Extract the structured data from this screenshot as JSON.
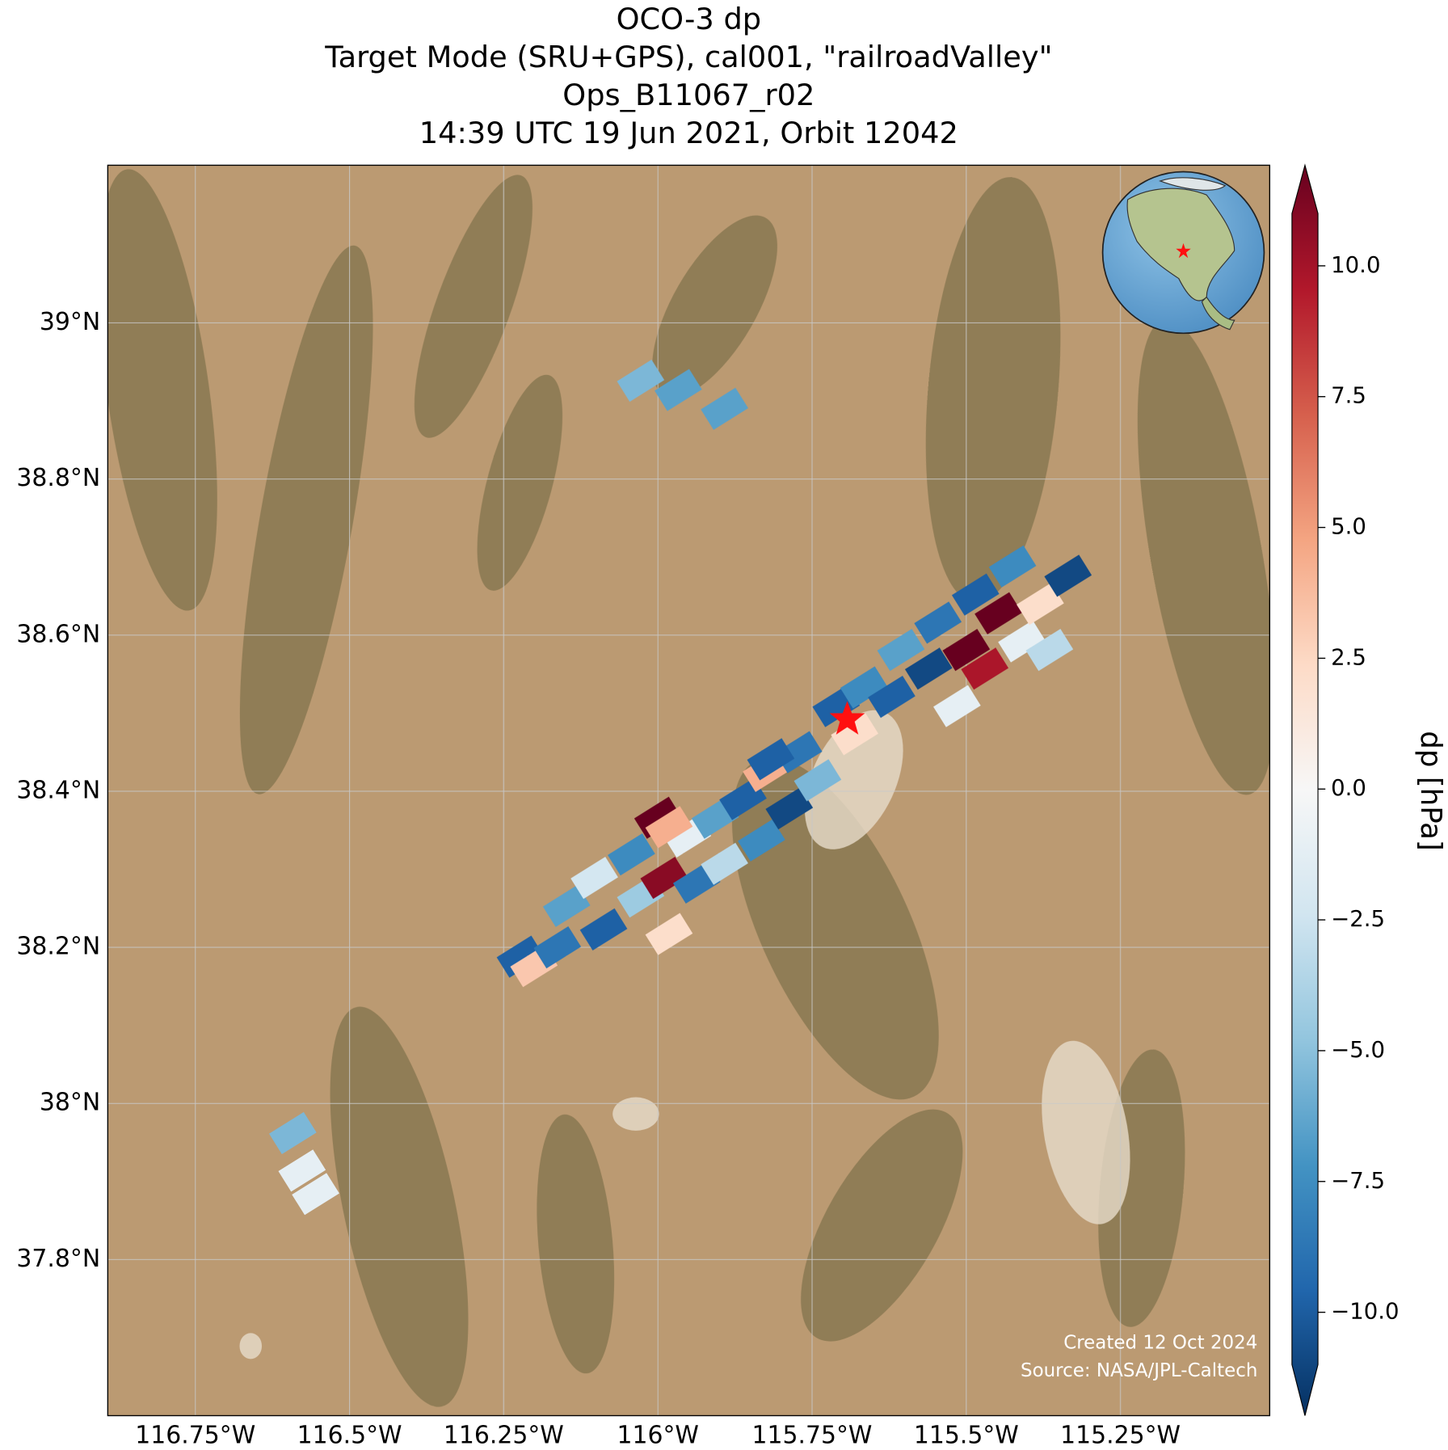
{
  "chart_data": {
    "type": "map",
    "title_lines": [
      "OCO-3 dp",
      "Target Mode (SRU+GPS), cal001, \"railroadValley\"",
      "Ops_B11067_r02",
      "14:39 UTC 19 Jun 2021, Orbit 12042"
    ],
    "xlim": [
      -116.892,
      -115.008
    ],
    "ylim": [
      37.6,
      39.202
    ],
    "xticks": [
      {
        "value": -116.75,
        "label": "116.75°W"
      },
      {
        "value": -116.5,
        "label": "116.5°W"
      },
      {
        "value": -116.25,
        "label": "116.25°W"
      },
      {
        "value": -116,
        "label": "116°W"
      },
      {
        "value": -115.75,
        "label": "115.75°W"
      },
      {
        "value": -115.5,
        "label": "115.5°W"
      },
      {
        "value": -115.25,
        "label": "115.25°W"
      }
    ],
    "yticks": [
      {
        "value": 39,
        "label": "39°N"
      },
      {
        "value": 38.8,
        "label": "38.8°N"
      },
      {
        "value": 38.6,
        "label": "38.6°N"
      },
      {
        "value": 38.4,
        "label": "38.4°N"
      },
      {
        "value": 38.2,
        "label": "38.2°N"
      },
      {
        "value": 38,
        "label": "38°N"
      },
      {
        "value": 37.8,
        "label": "37.8°N"
      }
    ],
    "grid": true,
    "colormap": "RdBu_r",
    "clim": [
      -11,
      11
    ],
    "colorbar_label": "dp [hPa]",
    "colorbar_ticks": [
      {
        "value": 10,
        "label": "10.0"
      },
      {
        "value": 7.5,
        "label": "7.5"
      },
      {
        "value": 5,
        "label": "5.0"
      },
      {
        "value": 2.5,
        "label": "2.5"
      },
      {
        "value": 0,
        "label": "0.0"
      },
      {
        "value": -2.5,
        "label": "−2.5"
      },
      {
        "value": -5,
        "label": "−5.0"
      },
      {
        "value": -7.5,
        "label": "−7.5"
      },
      {
        "value": -10,
        "label": "−10.0"
      }
    ],
    "target_location": {
      "lon": -115.693,
      "lat": 38.494
    },
    "soundings": {
      "lon": [
        -116.223,
        -116.201,
        -116.163,
        -116.148,
        -116.103,
        -116.088,
        -116.043,
        -116.028,
        -115.99,
        -115.982,
        -115.952,
        -115.937,
        -115.907,
        -115.892,
        -115.862,
        -115.832,
        -115.824,
        -115.787,
        -115.772,
        -115.741,
        -115.711,
        -115.681,
        -115.666,
        -115.621,
        -115.606,
        -115.561,
        -115.546,
        -115.5,
        -115.485,
        -115.47,
        -115.448,
        -115.425,
        -115.41,
        -115.38,
        -115.365,
        -115.335,
        -116.0,
        -115.982,
        -115.817,
        -115.515,
        -116.028,
        -115.967,
        -115.892,
        -116.592,
        -116.577,
        -116.555
      ],
      "lat": [
        38.188,
        38.176,
        38.2,
        38.253,
        38.289,
        38.223,
        38.319,
        38.265,
        38.289,
        38.217,
        38.342,
        38.283,
        38.366,
        38.307,
        38.39,
        38.337,
        38.426,
        38.378,
        38.45,
        38.414,
        38.509,
        38.473,
        38.533,
        38.521,
        38.581,
        38.557,
        38.616,
        38.581,
        38.652,
        38.557,
        38.628,
        38.688,
        38.592,
        38.64,
        38.581,
        38.676,
        38.366,
        38.354,
        38.441,
        38.509,
        38.926,
        38.914,
        38.89,
        37.962,
        37.914,
        37.884
      ],
      "dp": [
        -9,
        3,
        -8,
        -6,
        -2,
        -9,
        -7,
        -4,
        10,
        2,
        -1,
        -8,
        -6,
        -3,
        -9,
        -7,
        4,
        -10,
        -8,
        -5,
        -9,
        2,
        -7,
        -9,
        -6,
        -10,
        -8,
        11,
        -9,
        9,
        11,
        -7,
        -1,
        2,
        -3,
        -10,
        11,
        4,
        -9,
        -1,
        -5,
        -6,
        -6,
        -5,
        -1,
        -1
      ]
    },
    "credits": [
      "Created 12 Oct 2024",
      "Source: NASA/JPL-Caltech"
    ]
  }
}
